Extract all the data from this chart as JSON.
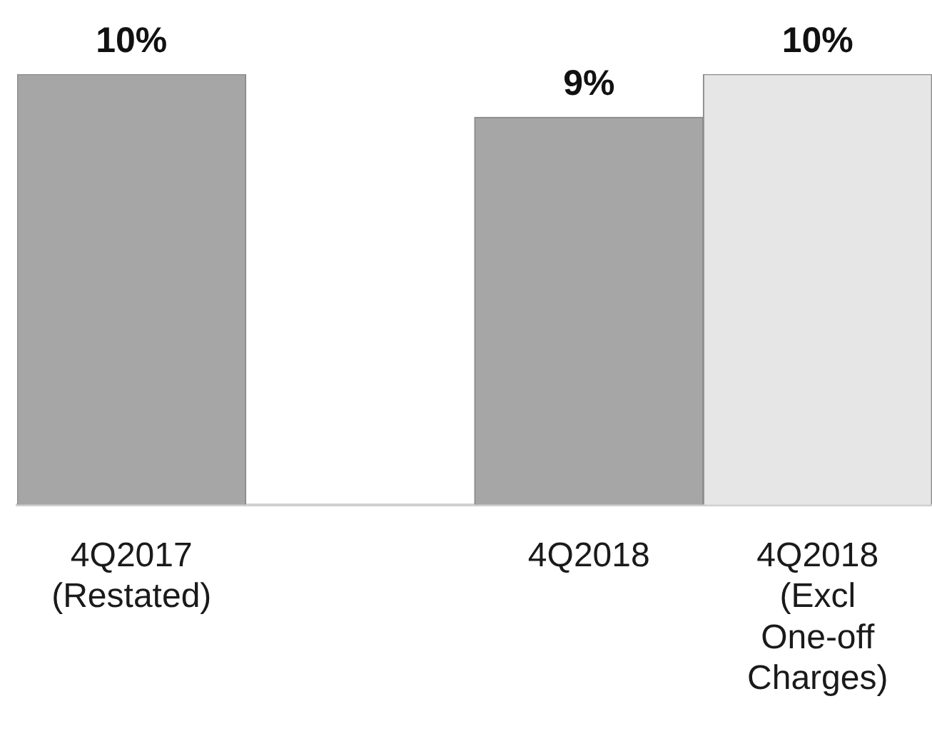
{
  "chart_data": {
    "type": "bar",
    "categories": [
      "4Q2017 (Restated)",
      null,
      "4Q2018",
      "4Q2018 (Excl One-off Charges)"
    ],
    "values": [
      10,
      null,
      9,
      10
    ],
    "colors": [
      "#a6a6a6",
      "#a6a6a6",
      "#a6a6a6",
      "#e6e6e6"
    ],
    "value_labels": [
      "10%",
      null,
      "9%",
      "10%"
    ],
    "grid": false,
    "legend": false,
    "tick_labels": "x"
  }
}
